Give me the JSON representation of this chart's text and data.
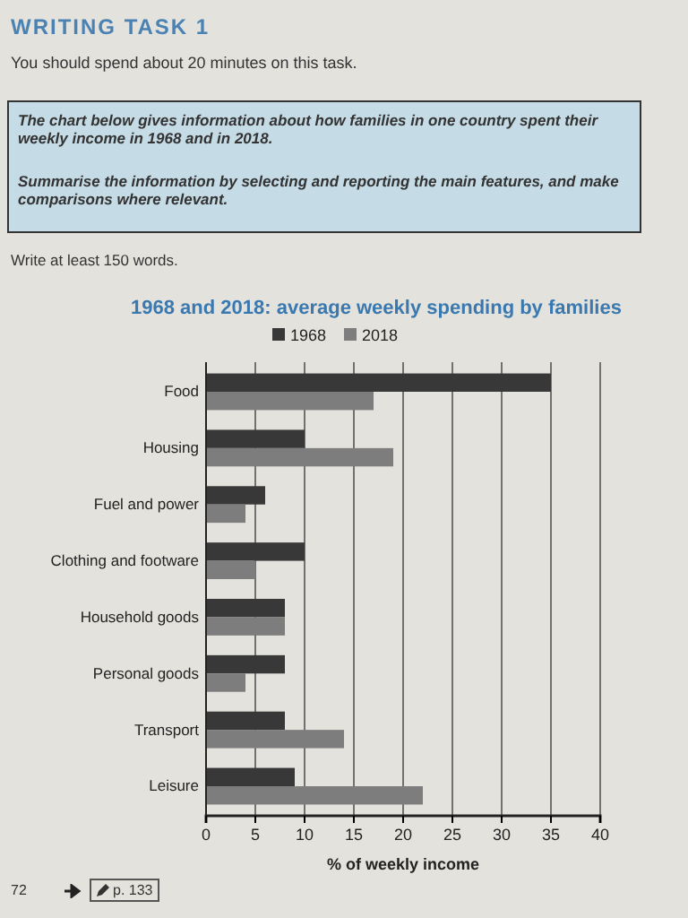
{
  "chart_data": {
    "type": "bar",
    "orientation": "horizontal",
    "title": "1968 and 2018: average weekly spending by families",
    "xlabel": "% of weekly income",
    "categories": [
      "Food",
      "Housing",
      "Fuel and power",
      "Clothing and footware",
      "Household goods",
      "Personal goods",
      "Transport",
      "Leisure"
    ],
    "series": [
      {
        "name": "1968",
        "color": "#383838",
        "values": [
          35,
          10,
          6,
          10,
          8,
          8,
          8,
          9
        ]
      },
      {
        "name": "2018",
        "color": "#7d7d7d",
        "values": [
          17,
          19,
          4,
          5,
          8,
          4,
          14,
          22
        ]
      }
    ],
    "xlim": [
      0,
      40
    ],
    "xticks": [
      0,
      5,
      10,
      15,
      20,
      25,
      30,
      35,
      40
    ],
    "grid": "x",
    "legend": "top",
    "annotations": [
      "WRITING TASK 1",
      "You should spend about 20 minutes on this task.",
      "The chart below gives information about how families in one country spent their weekly income in 1968 and in 2018.",
      "Summarise the information by selecting and reporting the main features, and make comparisons where relevant.",
      "Write at least 150 words.",
      "72",
      "p. 133"
    ]
  }
}
